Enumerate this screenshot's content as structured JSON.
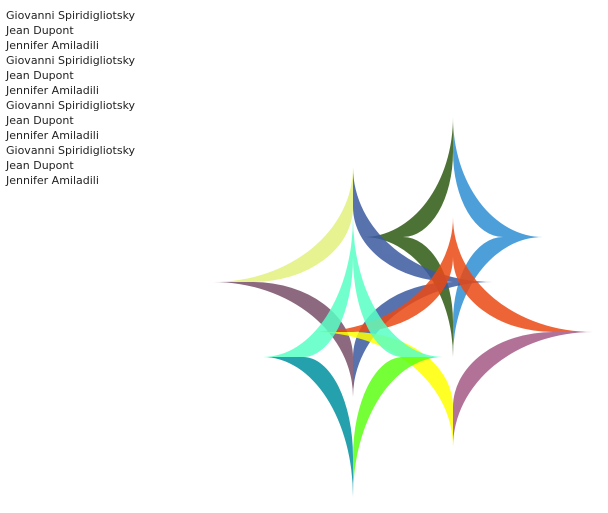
{
  "names": [
    "Giovanni Spiridigliotsky",
    "Jean Dupont",
    "Jennifer Amiladili",
    "Giovanni Spiridigliotsky",
    "Jean Dupont",
    "Jennifer Amiladili",
    "Giovanni Spiridigliotsky",
    "Jean Dupont",
    "Jennifer Amiladili",
    "Giovanni Spiridigliotsky",
    "Jean Dupont",
    "Jennifer Amiladili"
  ],
  "rings": [
    {
      "name": "ring-north",
      "opacity": 0.85,
      "quadrant_colors": [
        "#2f8fd4",
        "#2e5a12",
        "#2e5a12",
        "#2f8fd4"
      ]
    },
    {
      "name": "ring-west",
      "opacity": 0.85,
      "quadrant_colors": [
        "#3c5aa0",
        "#e3f07d",
        "#7a4f69",
        "#3c5aa0"
      ]
    },
    {
      "name": "ring-east",
      "opacity": 0.85,
      "quadrant_colors": [
        "#eb4a14",
        "#eb4a14",
        "#ffff00",
        "#a55a87"
      ]
    },
    {
      "name": "ring-south",
      "opacity": 0.85,
      "quadrant_colors": [
        "#59ffc5",
        "#59ffc5",
        "#00909f",
        "#5cff14"
      ]
    }
  ]
}
